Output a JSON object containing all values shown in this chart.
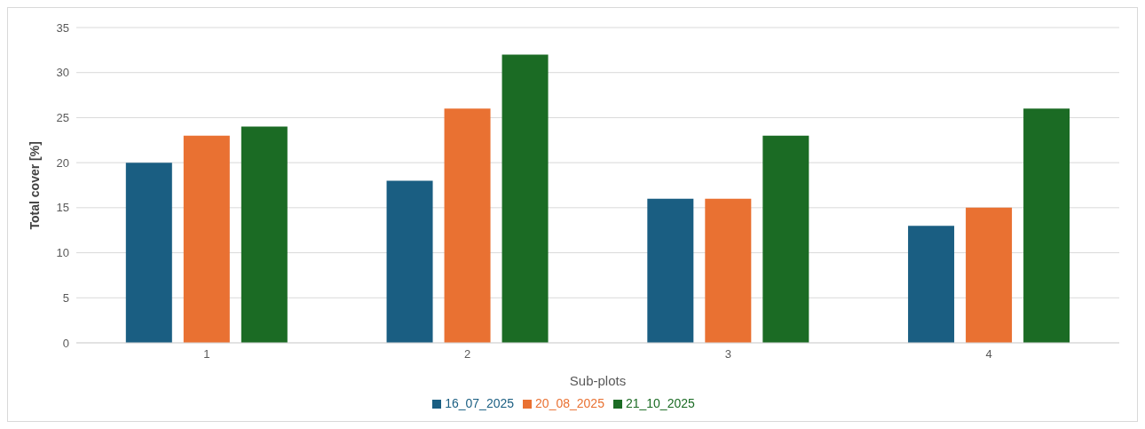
{
  "chart_data": {
    "type": "bar",
    "xlabel": "Sub-plots",
    "ylabel": "Total cover [%]",
    "categories": [
      "1",
      "2",
      "3",
      "4"
    ],
    "series": [
      {
        "name": "16_07_2025",
        "color": "#1a5e82",
        "values": [
          20,
          18,
          16,
          13
        ]
      },
      {
        "name": "20_08_2025",
        "color": "#e97132",
        "values": [
          23,
          26,
          16,
          15
        ]
      },
      {
        "name": "21_10_2025",
        "color": "#1b6b24",
        "values": [
          24,
          32,
          23,
          26
        ]
      }
    ],
    "ylim": [
      0,
      35
    ],
    "yticks": [
      0,
      5,
      10,
      15,
      20,
      25,
      30,
      35
    ],
    "grid": "y",
    "legend": "bottom"
  }
}
